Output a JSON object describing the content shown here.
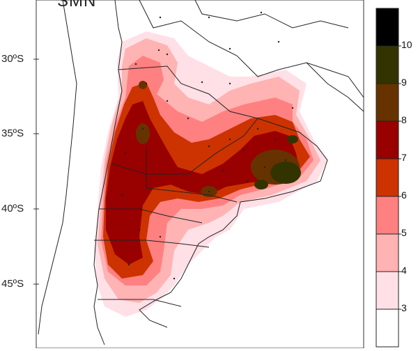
{
  "logo": "SMN",
  "latitude_labels": [
    "30ºS",
    "35ºS",
    "40ºS",
    "45ºS"
  ],
  "colorbar": {
    "labels": [
      "10",
      "9",
      "8",
      "7",
      "6",
      "5",
      "4",
      "3"
    ],
    "colors": [
      "#000000",
      "#333300",
      "#663300",
      "#990000",
      "#cc3300",
      "#ff8080",
      "#ffb3b3",
      "#ffe0e6",
      "#ffffff"
    ]
  }
}
